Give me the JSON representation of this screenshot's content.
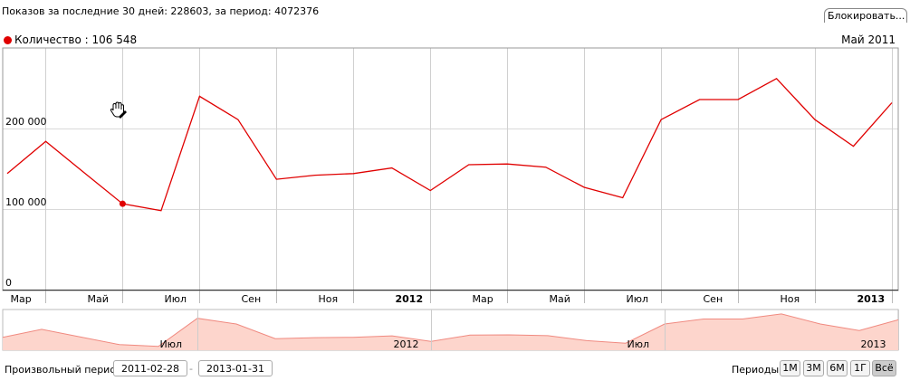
{
  "header": {
    "stats": "Показов за последние 30 дней: 228603, за период: 4072376",
    "block_button": "Блокировать..."
  },
  "legend": {
    "series_label": "Количество : 106 548",
    "date": "Май 2011",
    "color": "#e00000"
  },
  "chart_data": {
    "type": "line",
    "title": "",
    "xlabel": "",
    "ylabel": "",
    "ylim": [
      0,
      300000
    ],
    "y_ticks": [
      0,
      100000,
      200000
    ],
    "y_tick_labels": [
      "0",
      "100 000",
      "200 000"
    ],
    "x_tick_labels": [
      "Мар",
      "Май",
      "Июл",
      "Сен",
      "Ноя",
      "2012",
      "Мар",
      "Май",
      "Июл",
      "Сен",
      "Ноя",
      "2013"
    ],
    "x_tick_bold": [
      false,
      false,
      false,
      false,
      false,
      true,
      false,
      false,
      false,
      false,
      false,
      true
    ],
    "grid": true,
    "series": [
      {
        "color": "#e00000",
        "x": [
          "2011-02",
          "2011-03",
          "2011-04",
          "2011-05",
          "2011-06",
          "2011-07",
          "2011-08",
          "2011-09",
          "2011-10",
          "2011-11",
          "2011-12",
          "2012-01",
          "2012-02",
          "2012-03",
          "2012-04",
          "2012-05",
          "2012-06",
          "2012-07",
          "2012-08",
          "2012-09",
          "2012-10",
          "2012-11",
          "2012-12",
          "2013-01"
        ],
        "values": [
          144000,
          184000,
          145000,
          106548,
          98000,
          240000,
          211000,
          137000,
          142000,
          144000,
          151000,
          123000,
          155000,
          156000,
          152000,
          127000,
          114000,
          211000,
          236000,
          236000,
          262000,
          211000,
          178000,
          232000
        ]
      }
    ],
    "highlight_index": 3,
    "navigator": {
      "fill": "#fdd5cc",
      "line": "#f08a80",
      "labels": [
        "Июл",
        "2012",
        "Июл",
        "2013"
      ]
    }
  },
  "range": {
    "label": "Произвольный период:",
    "from": "2011-02-28",
    "to": "2013-01-31",
    "separator": "-"
  },
  "periods": {
    "label": "Периоды:",
    "buttons": [
      "1М",
      "3М",
      "6М",
      "1Г",
      "Всё"
    ],
    "active": 4
  }
}
